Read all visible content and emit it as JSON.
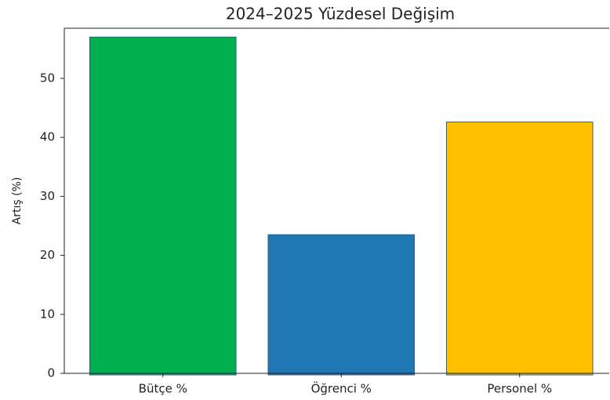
{
  "chart_data": {
    "type": "bar",
    "title": "2024–2025 Yüzdesel Değişim",
    "y_label": "Artış (%)",
    "categories": [
      "Bütçe %",
      "Öğrenci %",
      "Personel %"
    ],
    "values": [
      57.0,
      23.5,
      42.6
    ],
    "colors": [
      "#00b050",
      "#1f77b4",
      "#ffc000"
    ],
    "ylim": [
      0,
      58.5
    ],
    "yticks": [
      0,
      10,
      20,
      30,
      40,
      50
    ],
    "grid": false
  }
}
